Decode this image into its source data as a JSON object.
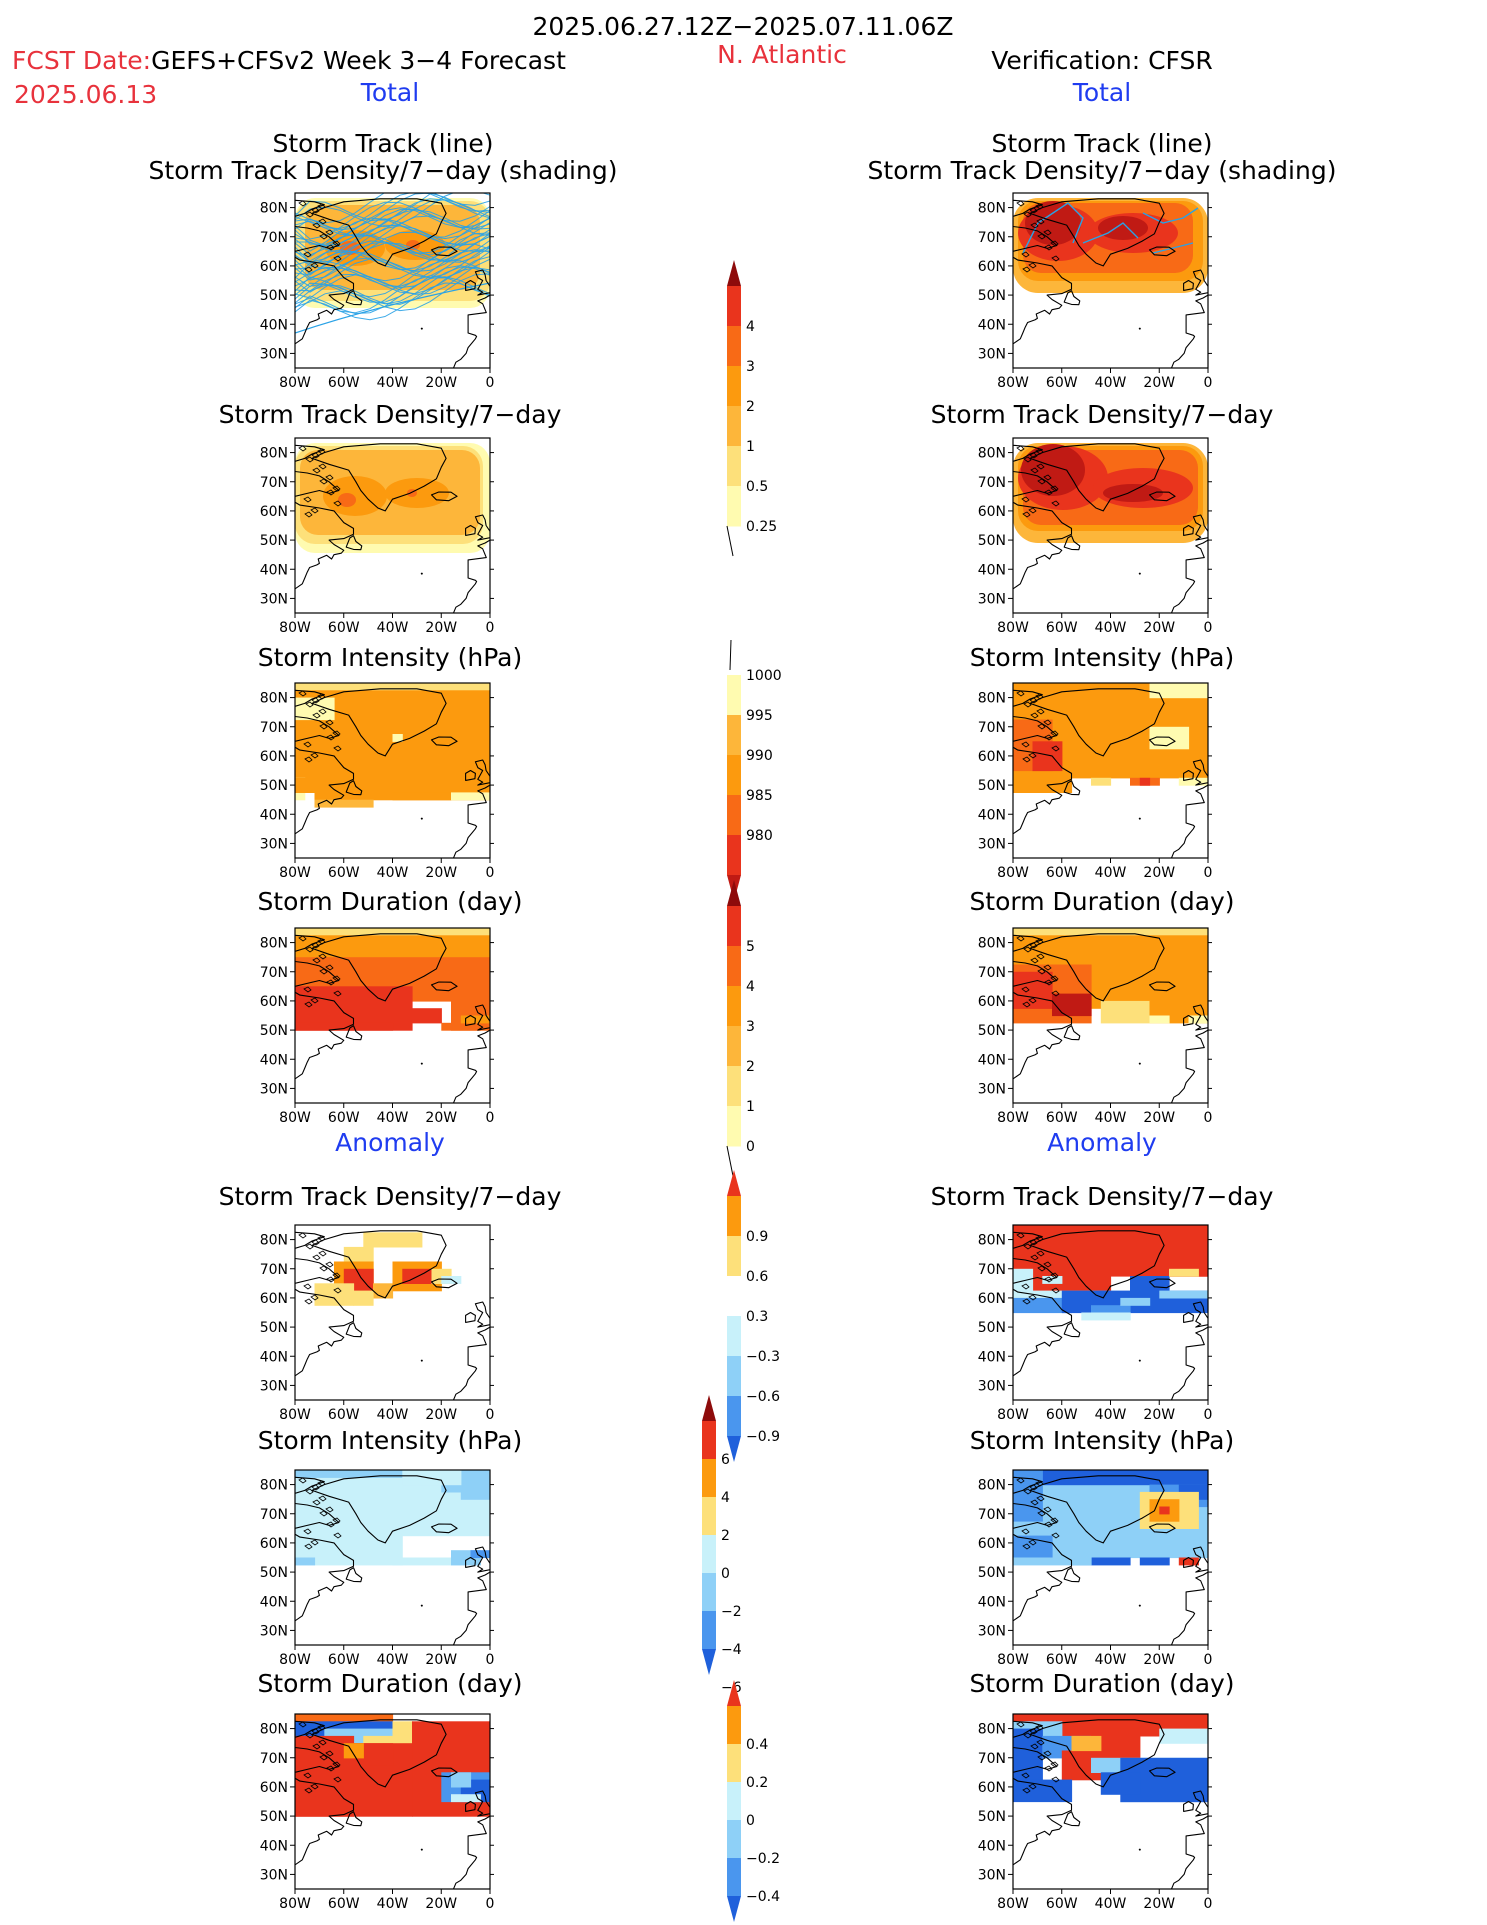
{
  "header": {
    "period": "2025.06.27.12Z−2025.07.11.06Z",
    "fcst_label": "FCST Date:",
    "model": "GEFS+CFSv2 Week 3−4 Forecast",
    "region": "N. Atlantic",
    "verification": "Verification: CFSR",
    "fcst_date": "2025.06.13"
  },
  "sections": {
    "total": "Total",
    "anomaly": "Anomaly"
  },
  "panel_titles": {
    "track_line": "Storm Track (line)",
    "track_shading": "Storm Track Density/7−day (shading)",
    "density": "Storm Track Density/7−day",
    "intensity": "Storm Intensity (hPa)",
    "duration": "Storm Duration (day)"
  },
  "axes": {
    "lat_ticks": [
      "80N",
      "70N",
      "60N",
      "50N",
      "40N",
      "30N"
    ],
    "lon_ticks": [
      "80W",
      "60W",
      "40W",
      "20W",
      "0"
    ]
  },
  "colorbars": {
    "density_total": [
      "4",
      "3",
      "2",
      "1",
      "0.5",
      "0.25"
    ],
    "intensity_total": [
      "1000",
      "995",
      "990",
      "985",
      "980"
    ],
    "duration_total": [
      "5",
      "4",
      "3",
      "2",
      "1",
      "0"
    ],
    "density_anomaly": [
      "0.9",
      "0.6",
      "0.3",
      "−0.3",
      "−0.6",
      "−0.9"
    ],
    "intensity_anomaly": [
      "6",
      "4",
      "2",
      "0",
      "−2",
      "−4",
      "−6"
    ],
    "duration_anomaly": [
      "0.4",
      "0.2",
      "0",
      "−0.2",
      "−0.4"
    ]
  },
  "colors": {
    "yellow_pale": "#fffbb0",
    "yellow": "#fde07a",
    "orange_light": "#fdb63a",
    "orange": "#fc9a0e",
    "orange_red": "#f86a16",
    "red": "#e9341d",
    "dark_red": "#c01a14",
    "maroon": "#8e0b0b",
    "cyan_pale": "#c8f1fa",
    "light_blue": "#8ed0f7",
    "mid_blue": "#4a96ee",
    "blue": "#1f60db",
    "track_line": "#2aa2e6"
  }
}
